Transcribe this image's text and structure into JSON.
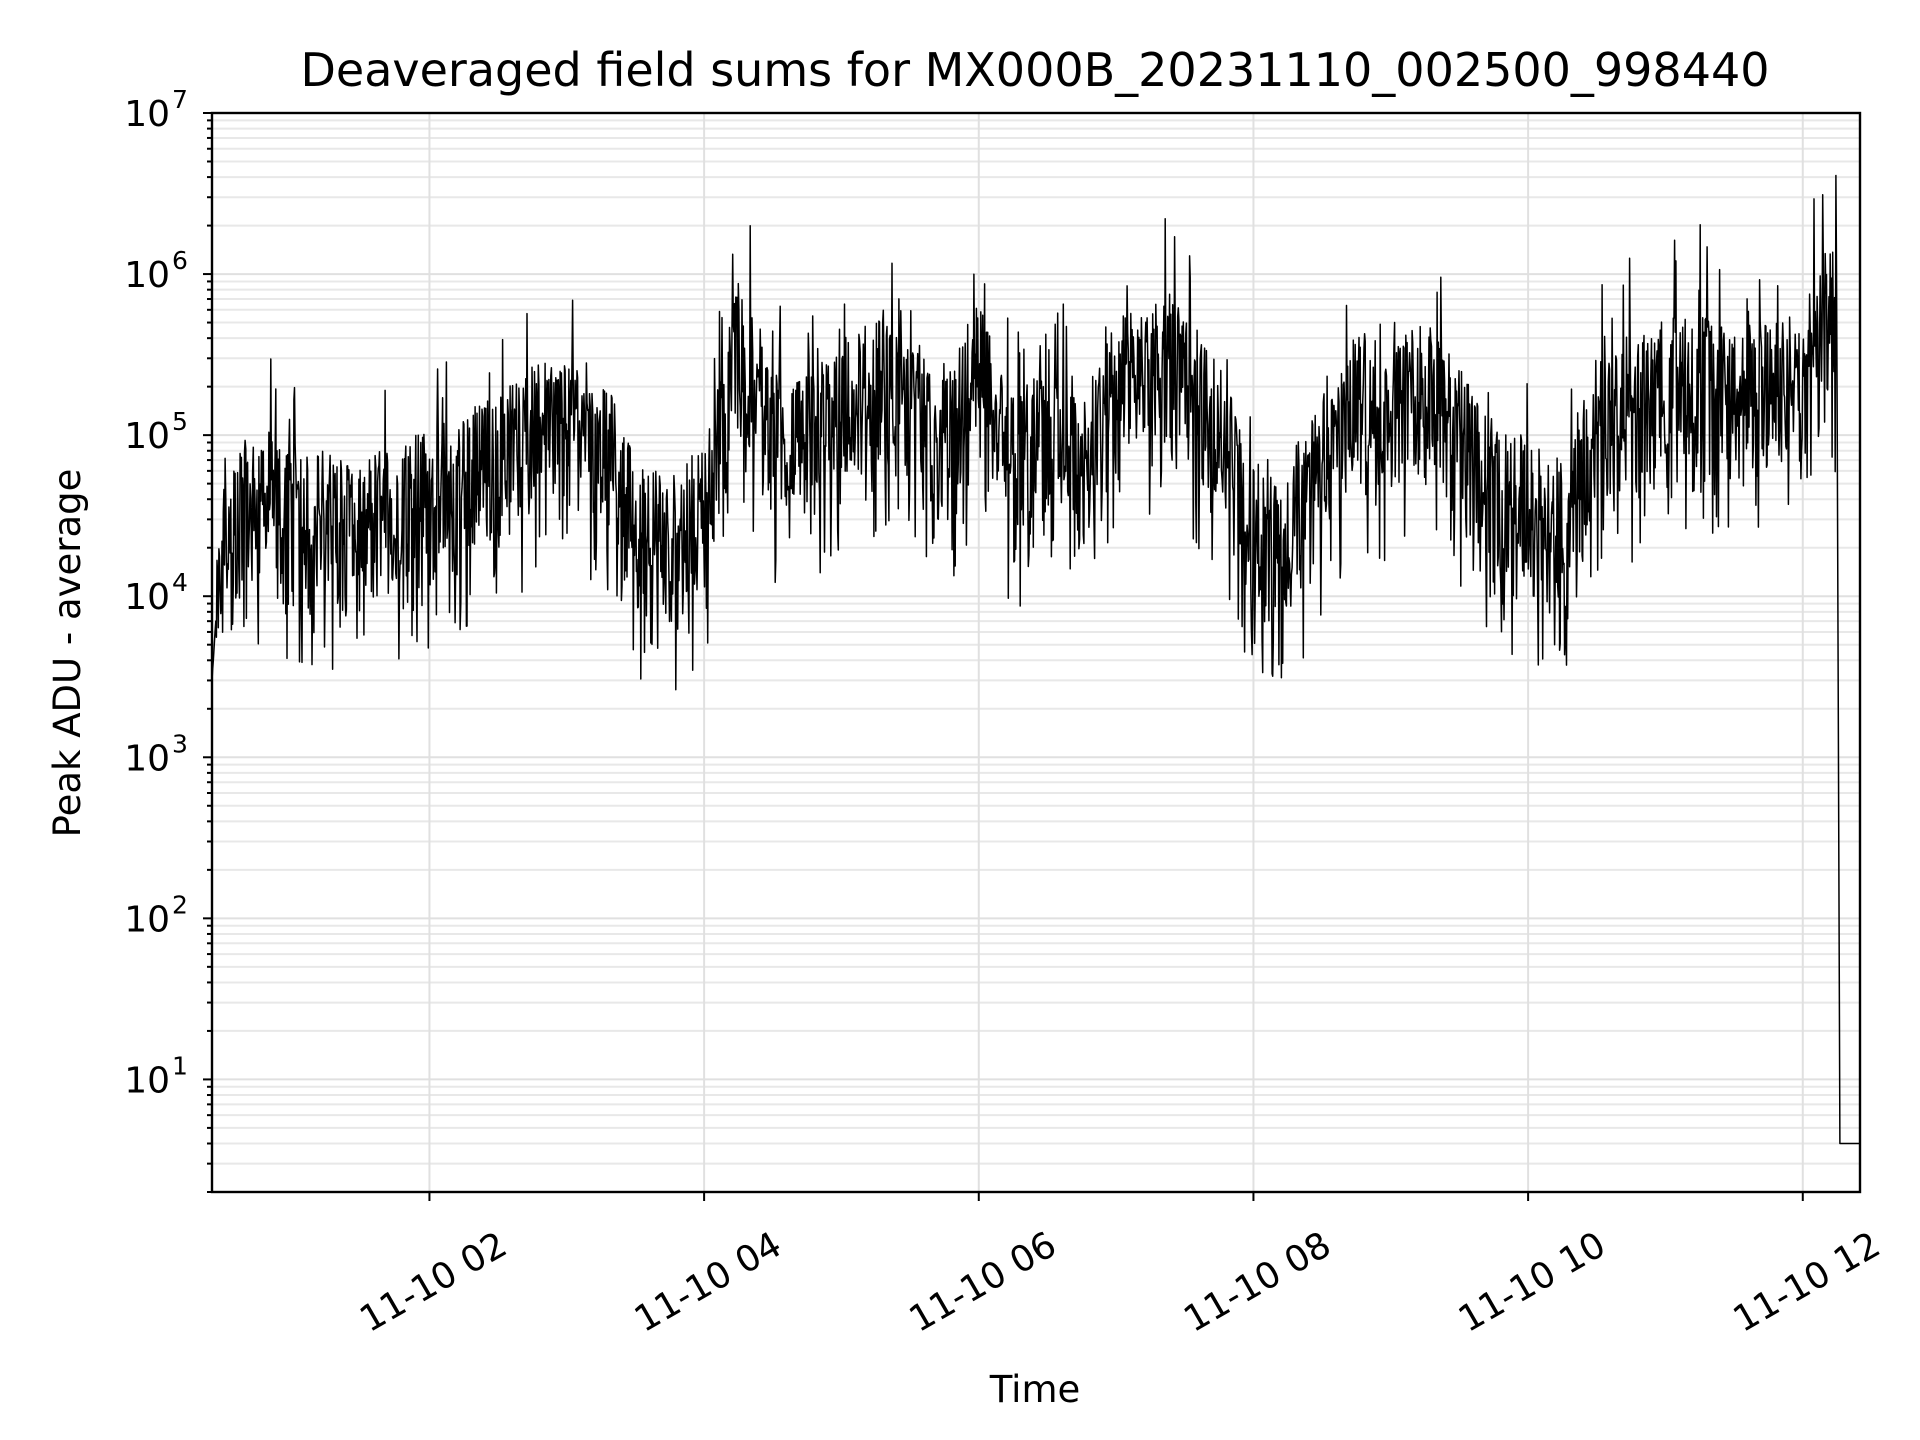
{
  "chart_data": {
    "type": "line",
    "title": "Deaveraged field sums for MX000B_20231110_002500_998440",
    "xlabel": "Time",
    "ylabel": "Peak ADU - average",
    "yscale": "log",
    "ylim": [
      2,
      10000000
    ],
    "xlim": [
      "2023-11-10 00:25",
      "2023-11-10 12:25"
    ],
    "grid": true,
    "x_tick_labels": [
      "11-10 02",
      "11-10 04",
      "11-10 06",
      "11-10 08",
      "11-10 10",
      "11-10 12"
    ],
    "y_tick_labels": [
      {
        "base": "10",
        "exp": "1"
      },
      {
        "base": "10",
        "exp": "2"
      },
      {
        "base": "10",
        "exp": "3"
      },
      {
        "base": "10",
        "exp": "4"
      },
      {
        "base": "10",
        "exp": "5"
      },
      {
        "base": "10",
        "exp": "6"
      },
      {
        "base": "10",
        "exp": "7"
      }
    ],
    "line_color": "#000000",
    "series": [
      {
        "x": [
          "2023-11-10 00:25",
          "2023-11-10 00:30",
          "2023-11-10 00:45",
          "2023-11-10 01:00",
          "2023-11-10 01:15",
          "2023-11-10 01:30",
          "2023-11-10 01:45",
          "2023-11-10 02:00",
          "2023-11-10 02:15",
          "2023-11-10 02:30",
          "2023-11-10 02:45",
          "2023-11-10 03:00",
          "2023-11-10 03:15",
          "2023-11-10 03:30",
          "2023-11-10 03:45",
          "2023-11-10 04:00",
          "2023-11-10 04:15",
          "2023-11-10 04:30",
          "2023-11-10 04:45",
          "2023-11-10 05:00",
          "2023-11-10 05:15",
          "2023-11-10 05:30",
          "2023-11-10 05:45",
          "2023-11-10 06:00",
          "2023-11-10 06:15",
          "2023-11-10 06:30",
          "2023-11-10 06:45",
          "2023-11-10 07:00",
          "2023-11-10 07:15",
          "2023-11-10 07:30",
          "2023-11-10 07:45",
          "2023-11-10 08:00",
          "2023-11-10 08:15",
          "2023-11-10 08:30",
          "2023-11-10 08:45",
          "2023-11-10 09:00",
          "2023-11-10 09:15",
          "2023-11-10 09:30",
          "2023-11-10 09:45",
          "2023-11-10 10:00",
          "2023-11-10 10:15",
          "2023-11-10 10:30",
          "2023-11-10 10:45",
          "2023-11-10 11:00",
          "2023-11-10 11:15",
          "2023-11-10 11:30",
          "2023-11-10 11:45",
          "2023-11-10 12:00",
          "2023-11-10 12:10",
          "2023-11-10 12:15",
          "2023-11-10 12:25"
        ],
        "values": [
          3000,
          40000,
          60000,
          50000,
          45000,
          40000,
          50000,
          60000,
          80000,
          100000,
          150000,
          180000,
          150000,
          40000,
          30000,
          50000,
          500000,
          150000,
          120000,
          200000,
          300000,
          250000,
          120000,
          400000,
          100000,
          150000,
          80000,
          300000,
          400000,
          350000,
          150000,
          40000,
          30000,
          100000,
          250000,
          200000,
          300000,
          150000,
          60000,
          50000,
          40000,
          150000,
          200000,
          300000,
          350000,
          250000,
          300000,
          350000,
          1000000,
          700000,
          4
        ]
      }
    ]
  }
}
